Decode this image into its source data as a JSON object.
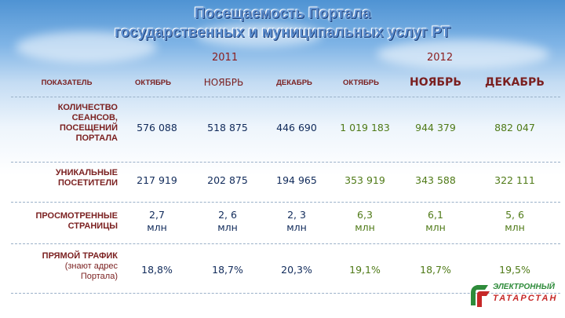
{
  "title": {
    "line1": "Посещаемость Портала",
    "line2": "государственных и муниципальных услуг РТ"
  },
  "years": {
    "y2011": "2011",
    "y2012": "2012"
  },
  "header": {
    "indicator": "ПОКАЗАТЕЛЬ",
    "months": [
      "ОКТЯБРЬ",
      "НОЯБРЬ",
      "ДЕКАБРЬ",
      "ОКТЯБРЬ",
      "НОЯБРЬ",
      "ДЕКАБРЬ"
    ]
  },
  "rows": [
    {
      "label_lines": [
        "КОЛИЧЕСТВО",
        "СЕАНСОВ,",
        "ПОСЕЩЕНИЙ",
        "ПОРТАЛА"
      ],
      "values": [
        "576 088",
        "518 875",
        "446 690",
        "1 019 183",
        "944 379",
        "882 047"
      ]
    },
    {
      "label_lines": [
        "УНИКАЛЬНЫЕ",
        "ПОСЕТИТЕЛИ"
      ],
      "values": [
        "217 919",
        "202 875",
        "194 965",
        "353 919",
        "343 588",
        "322 111"
      ]
    },
    {
      "label_lines": [
        "ПРОСМОТРЕННЫЕ",
        "СТРАНИЦЫ"
      ],
      "values": [
        "2,7",
        "2, 6",
        "2, 3",
        "6,3",
        "6,1",
        "5, 6"
      ],
      "unit": "млн"
    },
    {
      "label_lines": [
        "ПРЯМОЙ ТРАФИК",
        "(знают адрес",
        "Портала)"
      ],
      "values": [
        "18,8%",
        "18,7%",
        "20,3%",
        "19,1%",
        "18,7%",
        "19,5%"
      ]
    }
  ],
  "logo": {
    "line1": "ЭЛЕКТРОННЫЙ",
    "line2": "ТАТАРСТАН"
  },
  "colors": {
    "label": "#7a1f1f",
    "title": "#5d8fcf",
    "value_2011": "#102a5a",
    "value_2012": "#4f7a17",
    "logo_green": "#2e8b3a",
    "logo_red": "#c62828"
  }
}
